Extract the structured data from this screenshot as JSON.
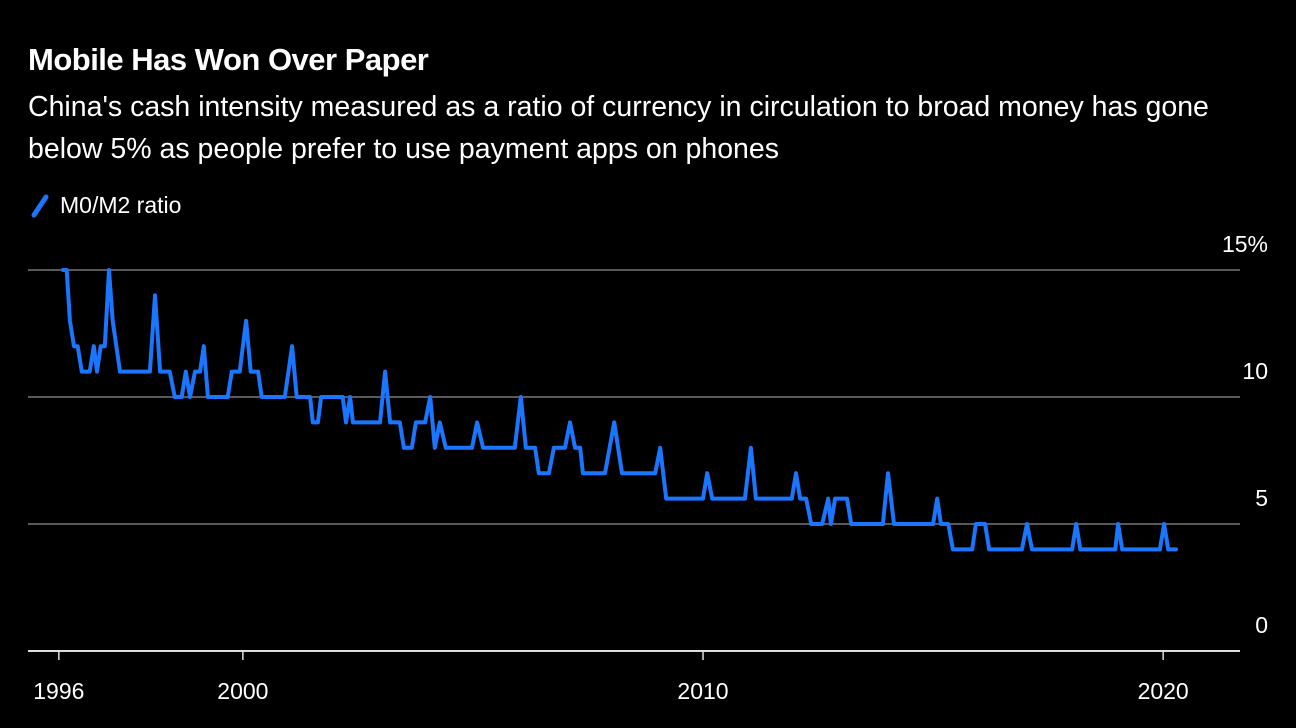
{
  "chart_data": {
    "type": "line",
    "title": "Mobile Has Won Over Paper",
    "subtitle": "China's cash intensity measured as a ratio of currency in circulation to broad money has gone below 5% as people prefer to use payment apps on phones",
    "x": [
      1996.09,
      1996.17,
      1996.24,
      1996.33,
      1996.41,
      1996.5,
      1996.67,
      1996.76,
      1996.83,
      1996.91,
      1997.0,
      1997.09,
      1997.17,
      1997.33,
      1997.98,
      1998.09,
      1998.2,
      1998.41,
      1998.52,
      1998.67,
      1998.76,
      1998.85,
      1998.96,
      1999.07,
      1999.15,
      1999.24,
      1999.67,
      1999.76,
      1999.93,
      2000.07,
      2000.17,
      2000.33,
      2000.41,
      2000.91,
      2001.07,
      2001.17,
      2001.46,
      2001.52,
      2001.63,
      2001.7,
      2002.17,
      2002.24,
      2002.33,
      2002.39,
      2002.98,
      2003.09,
      2003.2,
      2003.41,
      2003.5,
      2003.67,
      2003.76,
      2003.96,
      2004.07,
      2004.17,
      2004.28,
      2004.41,
      2004.98,
      2005.09,
      2005.22,
      2005.91,
      2006.04,
      2006.15,
      2006.35,
      2006.43,
      2006.65,
      2006.76,
      2007.0,
      2007.11,
      2007.22,
      2007.33,
      2007.39,
      2007.87,
      2008.07,
      2008.24,
      2008.96,
      2009.07,
      2009.2,
      2010.0,
      2010.09,
      2010.2,
      2010.91,
      2011.04,
      2011.15,
      2011.93,
      2012.02,
      2012.11,
      2012.24,
      2012.35,
      2012.59,
      2012.72,
      2012.78,
      2012.87,
      2013.13,
      2013.22,
      2013.91,
      2014.02,
      2014.15,
      2015.0,
      2015.09,
      2015.17,
      2015.33,
      2015.43,
      2015.85,
      2015.93,
      2016.13,
      2016.22,
      2016.93,
      2017.04,
      2017.15,
      2018.02,
      2018.11,
      2018.2,
      2018.96,
      2019.02,
      2019.11,
      2019.93,
      2020.02,
      2020.11,
      2020.28
    ],
    "series": [
      {
        "name": "M0/M2 ratio",
        "color": "#1a75ff",
        "values": [
          15,
          15,
          13,
          12,
          12,
          11,
          11,
          12,
          11,
          12,
          12,
          15,
          13,
          11,
          11,
          14,
          11,
          11,
          10,
          10,
          11,
          10,
          11,
          11,
          12,
          10,
          10,
          11,
          11,
          13,
          11,
          11,
          10,
          10,
          12,
          10,
          10,
          9,
          9,
          10,
          10,
          9,
          10,
          9,
          9,
          11,
          9,
          9,
          8,
          8,
          9,
          9,
          10,
          8,
          9,
          8,
          8,
          9,
          8,
          8,
          10,
          8,
          8,
          7,
          7,
          8,
          8,
          9,
          8,
          8,
          7,
          7,
          9,
          7,
          7,
          8,
          6,
          6,
          7,
          6,
          6,
          8,
          6,
          6,
          7,
          6,
          6,
          5,
          5,
          6,
          5,
          6,
          6,
          5,
          5,
          7,
          5,
          5,
          6,
          5,
          5,
          4,
          4,
          5,
          5,
          4,
          4,
          5,
          4,
          4,
          5,
          4,
          4,
          5,
          4,
          4,
          5,
          4,
          4
        ]
      }
    ],
    "xlim": [
      1995.33,
      2021.67
    ],
    "xticks": [
      1996,
      2000,
      2010,
      2020
    ],
    "ylim": [
      0,
      15
    ],
    "yticks": [
      0,
      5,
      10,
      {
        "value": 15,
        "label": "15%"
      }
    ],
    "grid": true
  }
}
